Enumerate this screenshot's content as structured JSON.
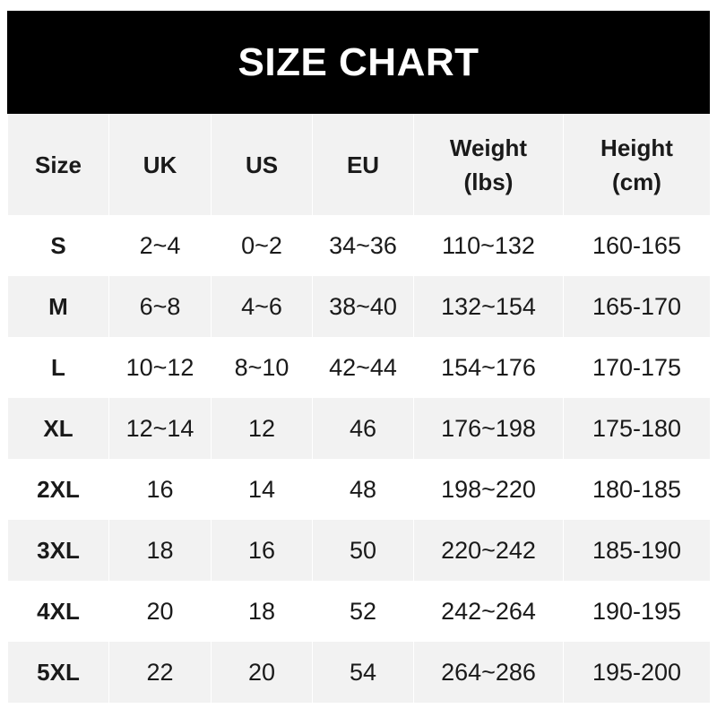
{
  "title": "SIZE CHART",
  "headers": [
    "Size",
    "UK",
    "US",
    "EU",
    "Weight\n(lbs)",
    "Height\n(cm)"
  ],
  "rows": [
    [
      "S",
      "2~4",
      "0~2",
      "34~36",
      "110~132",
      "160-165"
    ],
    [
      "M",
      "6~8",
      "4~6",
      "38~40",
      "132~154",
      "165-170"
    ],
    [
      "L",
      "10~12",
      "8~10",
      "42~44",
      "154~176",
      "170-175"
    ],
    [
      "XL",
      "12~14",
      "12",
      "46",
      "176~198",
      "175-180"
    ],
    [
      "2XL",
      "16",
      "14",
      "48",
      "198~220",
      "180-185"
    ],
    [
      "3XL",
      "18",
      "16",
      "50",
      "220~242",
      "185-190"
    ],
    [
      "4XL",
      "20",
      "18",
      "52",
      "242~264",
      "190-195"
    ],
    [
      "5XL",
      "22",
      "20",
      "54",
      "264~286",
      "195-200"
    ]
  ],
  "colors": {
    "header_bg": "#000000",
    "header_text": "#ffffff",
    "stripe": "#f2f2f2"
  }
}
